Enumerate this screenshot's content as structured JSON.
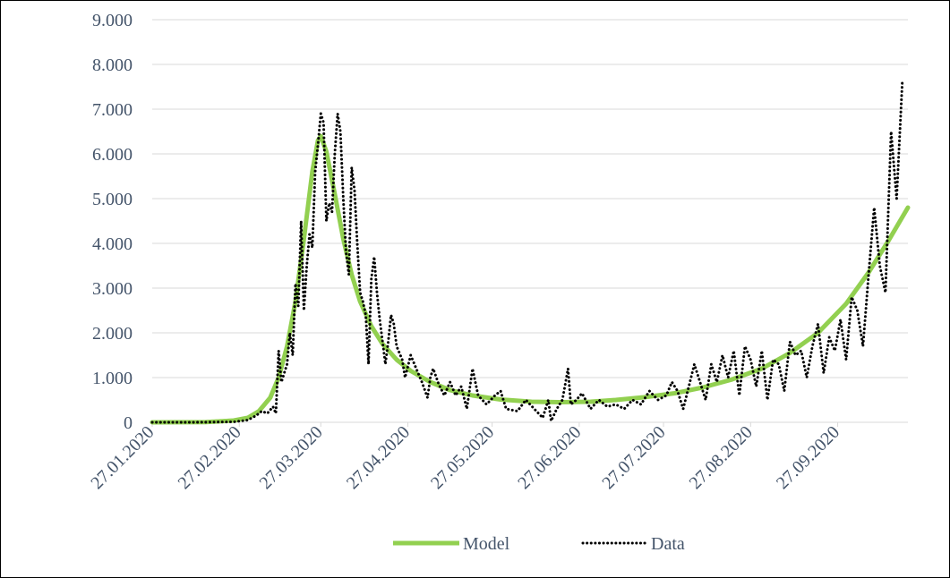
{
  "chart_data": {
    "type": "line",
    "title": "",
    "xlabel": "",
    "ylabel": "",
    "ylim": [
      0,
      9000
    ],
    "yticks": [
      {
        "value": 0,
        "label": "0"
      },
      {
        "value": 1000,
        "label": "1.000"
      },
      {
        "value": 2000,
        "label": "2.000"
      },
      {
        "value": 3000,
        "label": "3.000"
      },
      {
        "value": 4000,
        "label": "4.000"
      },
      {
        "value": 5000,
        "label": "5.000"
      },
      {
        "value": 6000,
        "label": "6.000"
      },
      {
        "value": 7000,
        "label": "7.000"
      },
      {
        "value": 8000,
        "label": "8.000"
      },
      {
        "value": 9000,
        "label": "9.000"
      }
    ],
    "x_range": [
      "2020-01-27",
      "2020-10-22"
    ],
    "xticks": [
      {
        "date": "2020-01-27",
        "label": "27.01.2020"
      },
      {
        "date": "2020-02-27",
        "label": "27.02.2020"
      },
      {
        "date": "2020-03-27",
        "label": "27.03.2020"
      },
      {
        "date": "2020-04-27",
        "label": "27.04.2020"
      },
      {
        "date": "2020-05-27",
        "label": "27.05.2020"
      },
      {
        "date": "2020-06-27",
        "label": "27.06.2020"
      },
      {
        "date": "2020-07-27",
        "label": "27.07.2020"
      },
      {
        "date": "2020-08-27",
        "label": "27.08.2020"
      },
      {
        "date": "2020-09-27",
        "label": "27.09.2020"
      }
    ],
    "grid": "horizontal",
    "legend": "bottom",
    "colors": {
      "model": "#92d050",
      "data": "#000000",
      "grid": "#d9d9d9",
      "text": "#44546a"
    },
    "series": [
      {
        "name": "Model",
        "style": "solid",
        "points": [
          [
            "2020-01-27",
            0
          ],
          [
            "2020-02-15",
            5
          ],
          [
            "2020-02-25",
            40
          ],
          [
            "2020-03-01",
            100
          ],
          [
            "2020-03-05",
            250
          ],
          [
            "2020-03-09",
            550
          ],
          [
            "2020-03-12",
            1000
          ],
          [
            "2020-03-15",
            1700
          ],
          [
            "2020-03-18",
            2700
          ],
          [
            "2020-03-21",
            4100
          ],
          [
            "2020-03-24",
            5600
          ],
          [
            "2020-03-26",
            6300
          ],
          [
            "2020-03-27",
            6400
          ],
          [
            "2020-03-29",
            6050
          ],
          [
            "2020-04-01",
            5100
          ],
          [
            "2020-04-04",
            4100
          ],
          [
            "2020-04-07",
            3300
          ],
          [
            "2020-04-10",
            2700
          ],
          [
            "2020-04-14",
            2150
          ],
          [
            "2020-04-18",
            1750
          ],
          [
            "2020-04-23",
            1400
          ],
          [
            "2020-04-28",
            1150
          ],
          [
            "2020-05-05",
            900
          ],
          [
            "2020-05-12",
            720
          ],
          [
            "2020-05-20",
            600
          ],
          [
            "2020-05-30",
            510
          ],
          [
            "2020-06-10",
            460
          ],
          [
            "2020-06-20",
            450
          ],
          [
            "2020-07-01",
            460
          ],
          [
            "2020-07-10",
            500
          ],
          [
            "2020-07-20",
            560
          ],
          [
            "2020-07-31",
            650
          ],
          [
            "2020-08-10",
            780
          ],
          [
            "2020-08-20",
            950
          ],
          [
            "2020-08-31",
            1200
          ],
          [
            "2020-09-10",
            1550
          ],
          [
            "2020-09-20",
            2000
          ],
          [
            "2020-09-30",
            2650
          ],
          [
            "2020-10-08",
            3350
          ],
          [
            "2020-10-15",
            4050
          ],
          [
            "2020-10-22",
            4800
          ]
        ]
      },
      {
        "name": "Data",
        "style": "dotted",
        "points": [
          [
            "2020-01-27",
            0
          ],
          [
            "2020-02-10",
            0
          ],
          [
            "2020-02-25",
            10
          ],
          [
            "2020-03-01",
            50
          ],
          [
            "2020-03-04",
            150
          ],
          [
            "2020-03-06",
            250
          ],
          [
            "2020-03-08",
            200
          ],
          [
            "2020-03-10",
            350
          ],
          [
            "2020-03-11",
            200
          ],
          [
            "2020-03-12",
            1600
          ],
          [
            "2020-03-13",
            900
          ],
          [
            "2020-03-15",
            1300
          ],
          [
            "2020-03-16",
            2000
          ],
          [
            "2020-03-17",
            1500
          ],
          [
            "2020-03-18",
            3100
          ],
          [
            "2020-03-19",
            2600
          ],
          [
            "2020-03-20",
            4500
          ],
          [
            "2020-03-21",
            2500
          ],
          [
            "2020-03-22",
            3500
          ],
          [
            "2020-03-23",
            4200
          ],
          [
            "2020-03-24",
            3900
          ],
          [
            "2020-03-25",
            5600
          ],
          [
            "2020-03-26",
            6200
          ],
          [
            "2020-03-27",
            6900
          ],
          [
            "2020-03-28",
            6700
          ],
          [
            "2020-03-29",
            4500
          ],
          [
            "2020-03-30",
            4900
          ],
          [
            "2020-03-31",
            4700
          ],
          [
            "2020-04-01",
            6000
          ],
          [
            "2020-04-02",
            6900
          ],
          [
            "2020-04-03",
            6500
          ],
          [
            "2020-04-04",
            5000
          ],
          [
            "2020-04-05",
            3800
          ],
          [
            "2020-04-06",
            3300
          ],
          [
            "2020-04-07",
            5700
          ],
          [
            "2020-04-08",
            5200
          ],
          [
            "2020-04-09",
            4000
          ],
          [
            "2020-04-10",
            2900
          ],
          [
            "2020-04-11",
            2700
          ],
          [
            "2020-04-12",
            2400
          ],
          [
            "2020-04-13",
            1300
          ],
          [
            "2020-04-14",
            3200
          ],
          [
            "2020-04-15",
            3700
          ],
          [
            "2020-04-16",
            2900
          ],
          [
            "2020-04-17",
            2300
          ],
          [
            "2020-04-18",
            1800
          ],
          [
            "2020-04-19",
            1300
          ],
          [
            "2020-04-20",
            1800
          ],
          [
            "2020-04-21",
            2400
          ],
          [
            "2020-04-22",
            2200
          ],
          [
            "2020-04-23",
            1700
          ],
          [
            "2020-04-25",
            1400
          ],
          [
            "2020-04-26",
            1000
          ],
          [
            "2020-04-28",
            1500
          ],
          [
            "2020-04-30",
            1200
          ],
          [
            "2020-05-02",
            900
          ],
          [
            "2020-05-04",
            550
          ],
          [
            "2020-05-05",
            1000
          ],
          [
            "2020-05-06",
            1200
          ],
          [
            "2020-05-08",
            850
          ],
          [
            "2020-05-10",
            600
          ],
          [
            "2020-05-12",
            900
          ],
          [
            "2020-05-14",
            600
          ],
          [
            "2020-05-16",
            800
          ],
          [
            "2020-05-18",
            300
          ],
          [
            "2020-05-20",
            1200
          ],
          [
            "2020-05-22",
            600
          ],
          [
            "2020-05-25",
            400
          ],
          [
            "2020-05-28",
            600
          ],
          [
            "2020-05-30",
            700
          ],
          [
            "2020-06-01",
            300
          ],
          [
            "2020-06-05",
            250
          ],
          [
            "2020-06-08",
            500
          ],
          [
            "2020-06-11",
            300
          ],
          [
            "2020-06-14",
            100
          ],
          [
            "2020-06-16",
            500
          ],
          [
            "2020-06-17",
            30
          ],
          [
            "2020-06-19",
            300
          ],
          [
            "2020-06-21",
            500
          ],
          [
            "2020-06-23",
            1200
          ],
          [
            "2020-06-24",
            400
          ],
          [
            "2020-06-26",
            500
          ],
          [
            "2020-06-28",
            650
          ],
          [
            "2020-07-01",
            300
          ],
          [
            "2020-07-04",
            500
          ],
          [
            "2020-07-07",
            350
          ],
          [
            "2020-07-10",
            400
          ],
          [
            "2020-07-13",
            300
          ],
          [
            "2020-07-16",
            500
          ],
          [
            "2020-07-19",
            400
          ],
          [
            "2020-07-22",
            700
          ],
          [
            "2020-07-25",
            500
          ],
          [
            "2020-07-28",
            600
          ],
          [
            "2020-07-30",
            900
          ],
          [
            "2020-08-01",
            700
          ],
          [
            "2020-08-03",
            300
          ],
          [
            "2020-08-05",
            800
          ],
          [
            "2020-08-07",
            1300
          ],
          [
            "2020-08-09",
            900
          ],
          [
            "2020-08-11",
            500
          ],
          [
            "2020-08-13",
            1300
          ],
          [
            "2020-08-15",
            900
          ],
          [
            "2020-08-17",
            1500
          ],
          [
            "2020-08-19",
            1000
          ],
          [
            "2020-08-21",
            1600
          ],
          [
            "2020-08-23",
            600
          ],
          [
            "2020-08-25",
            1700
          ],
          [
            "2020-08-27",
            1400
          ],
          [
            "2020-08-29",
            800
          ],
          [
            "2020-08-31",
            1600
          ],
          [
            "2020-09-02",
            500
          ],
          [
            "2020-09-04",
            1400
          ],
          [
            "2020-09-06",
            1300
          ],
          [
            "2020-09-08",
            700
          ],
          [
            "2020-09-10",
            1800
          ],
          [
            "2020-09-12",
            1500
          ],
          [
            "2020-09-14",
            1600
          ],
          [
            "2020-09-16",
            1000
          ],
          [
            "2020-09-18",
            1700
          ],
          [
            "2020-09-20",
            2200
          ],
          [
            "2020-09-22",
            1100
          ],
          [
            "2020-09-24",
            1900
          ],
          [
            "2020-09-26",
            1600
          ],
          [
            "2020-09-28",
            2300
          ],
          [
            "2020-09-30",
            1400
          ],
          [
            "2020-10-02",
            2800
          ],
          [
            "2020-10-04",
            2500
          ],
          [
            "2020-10-06",
            1700
          ],
          [
            "2020-10-08",
            3300
          ],
          [
            "2020-10-10",
            4800
          ],
          [
            "2020-10-12",
            3500
          ],
          [
            "2020-10-14",
            2900
          ],
          [
            "2020-10-16",
            6500
          ],
          [
            "2020-10-18",
            5000
          ],
          [
            "2020-10-20",
            7600
          ]
        ]
      }
    ]
  }
}
